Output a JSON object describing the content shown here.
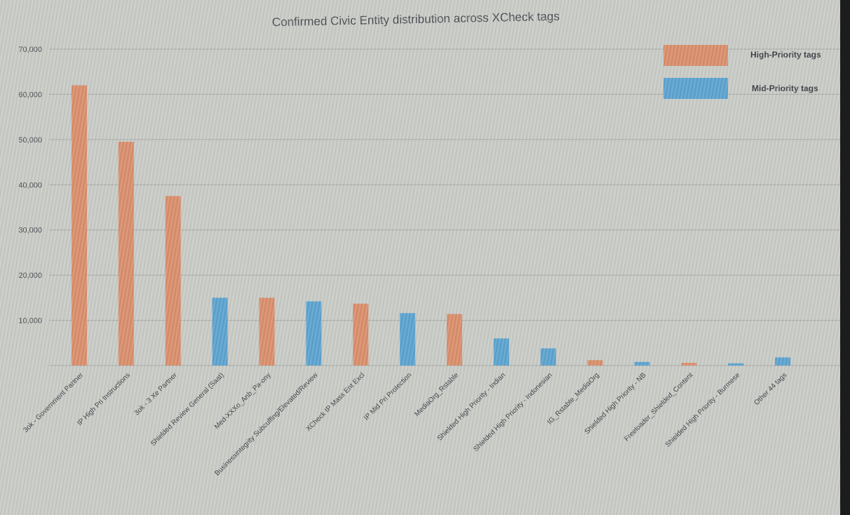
{
  "chart_data": {
    "type": "bar",
    "title": "Confirmed Civic Entity distribution across XCheck tags",
    "xlabel": "",
    "ylabel": "",
    "ylim": [
      0,
      70000
    ],
    "yticks": [
      0,
      10000,
      20000,
      30000,
      40000,
      50000,
      60000,
      70000
    ],
    "ytick_labels": [
      "",
      "10,000",
      "20,000",
      "30,000",
      "40,000",
      "50,000",
      "60,000",
      "70,000"
    ],
    "grid": true,
    "legend_position": "top-right",
    "colors": {
      "high": "#d98e6b",
      "mid": "#5ba3cf"
    },
    "series": [
      {
        "name": "High-Priority tags",
        "color_key": "high"
      },
      {
        "name": "Mid-Priority tags",
        "color_key": "mid"
      }
    ],
    "categories": [
      "3ok - Government Partner",
      "IP High Pri Instructions",
      "3ok - 3 Xe Partner",
      "Shielded Review General (Saat)",
      "Med-XXXo_Anb_Pa-ony",
      "Businessintegrity Subcuffing/Elevated/Review",
      "XCheck IP Mass Ent Excl",
      "IP Mid Pri Protection",
      "MediaOrg_Rstable",
      "Shielded High Priority - Indian",
      "Shielded High Priority - Indonesian",
      "IG_Rstable_MediaOrg",
      "Shielded High Priority - NB",
      "Freeloader_Shielded_Content",
      "Shielded High Priority - Burmese",
      "Other 44 tags"
    ],
    "values": [
      62000,
      49500,
      37500,
      15000,
      15000,
      14200,
      13700,
      11600,
      11400,
      6000,
      3800,
      1200,
      800,
      600,
      500,
      1800
    ],
    "priority": [
      "high",
      "high",
      "high",
      "mid",
      "high",
      "mid",
      "high",
      "mid",
      "high",
      "mid",
      "mid",
      "high",
      "mid",
      "high",
      "mid",
      "mid"
    ]
  }
}
